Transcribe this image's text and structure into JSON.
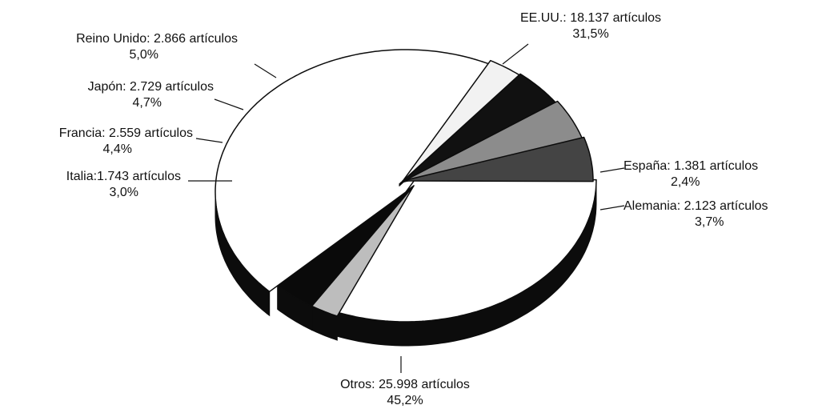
{
  "chart_data": {
    "type": "pie",
    "style": "3d-exploded-oval",
    "slices": [
      {
        "label": "EE.UU.: 18.137 artículos",
        "pct_label": "31,5%",
        "articles": 18137,
        "percent": 31.5,
        "color": "#ffffff"
      },
      {
        "label": "España: 1.381 artículos",
        "pct_label": "2,4%",
        "articles": 1381,
        "percent": 2.4,
        "color": "#bdbdbd"
      },
      {
        "label": "Alemania: 2.123 artículos",
        "pct_label": "3,7%",
        "articles": 2123,
        "percent": 3.7,
        "color": "#0a0a0a"
      },
      {
        "label": "Otros: 25.998 artículos",
        "pct_label": "45,2%",
        "articles": 25998,
        "percent": 45.2,
        "color": "#ffffff"
      },
      {
        "label": "Italia:1.743 artículos",
        "pct_label": "3,0%",
        "articles": 1743,
        "percent": 3.0,
        "color": "#f2f2f2"
      },
      {
        "label": "Francia: 2.559 artículos",
        "pct_label": "4,4%",
        "articles": 2559,
        "percent": 4.4,
        "color": "#111111"
      },
      {
        "label": "Japón: 2.729 artículos",
        "pct_label": "4,7%",
        "articles": 2729,
        "percent": 4.7,
        "color": "#8c8c8c"
      },
      {
        "label": "Reino Unido: 2.866 artículos",
        "pct_label": "5,0%",
        "articles": 2866,
        "percent": 5.0,
        "color": "#444444"
      }
    ],
    "legend": "none"
  }
}
